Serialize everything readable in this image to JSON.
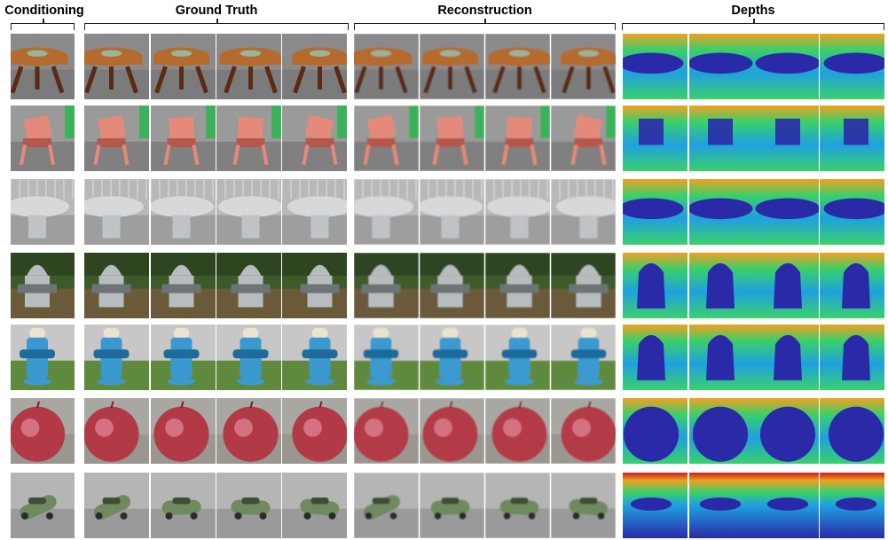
{
  "headers": {
    "conditioning": "Conditioning",
    "ground_truth": "Ground Truth",
    "reconstruction": "Reconstruction",
    "depths": "Depths"
  },
  "rows": [
    {
      "subject": "round wooden table with glass lazy susan",
      "colors": {
        "bg": "#8a8a8a",
        "floor": "#7b7b7b",
        "main": "#b56a2e",
        "dark": "#5a2a12",
        "accent": "#9bb39a"
      }
    },
    {
      "subject": "pink chair",
      "colors": {
        "bg": "#9a9a9a",
        "floor": "#808080",
        "main": "#e58a7a",
        "dark": "#b5574c",
        "accent": "#3bb25a"
      }
    },
    {
      "subject": "white outdoor table",
      "colors": {
        "bg": "#b8b8b8",
        "floor": "#9e9e9e",
        "main": "#d6d8da",
        "dark": "#c0c3c6",
        "accent": "#e8e8e8"
      }
    },
    {
      "subject": "silver fire hydrant on grass",
      "colors": {
        "bg": "#3f5a2a",
        "floor": "#6b5a3a",
        "main": "#b7bcbf",
        "dark": "#6d7376",
        "accent": "#2f4520"
      }
    },
    {
      "subject": "blue fire hydrant with white cap",
      "colors": {
        "bg": "#c7c7c7",
        "floor": "#5f8a3e",
        "main": "#3a9ad0",
        "dark": "#1f6b9a",
        "accent": "#e9e3cf"
      }
    },
    {
      "subject": "red apple",
      "colors": {
        "bg": "#a9a7a2",
        "floor": "#9a9791",
        "main": "#b23a47",
        "dark": "#7a1f2b",
        "accent": "#f0a0b0"
      }
    },
    {
      "subject": "green toy car",
      "colors": {
        "bg": "#b5b5b5",
        "floor": "#9a9a9a",
        "main": "#6f8a5e",
        "dark": "#3e4d36",
        "accent": "#2b2b2b"
      }
    }
  ],
  "depth_colors": {
    "near": "#2a2aa8",
    "mid": "#1fa0e0",
    "far": "#3ad06a",
    "farthest": "#f0a020"
  }
}
